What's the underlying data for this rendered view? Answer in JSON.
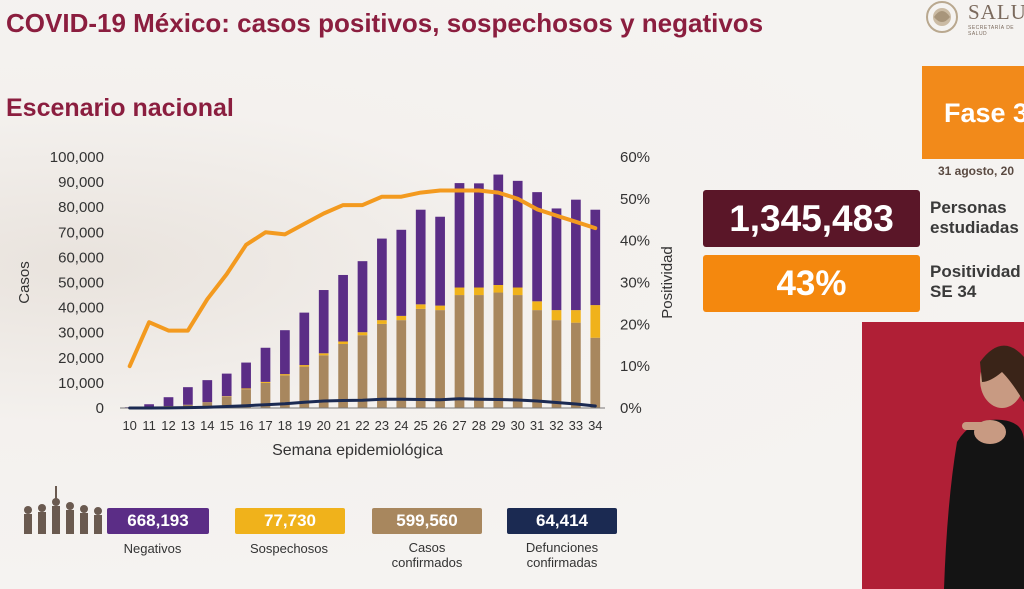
{
  "header": {
    "title": "COVID-19 México: casos positivos, sospechosos y negativos",
    "subtitle": "Escenario nacional",
    "logo_text": "SALU",
    "logo_sub": "SECRETARÍA DE SALUD"
  },
  "fase": {
    "label": "Fase 3",
    "date": "31 agosto, 20"
  },
  "stats": [
    {
      "value": "1,345,483",
      "label_line1": "Personas",
      "label_line2": "estudiadas"
    },
    {
      "value": "43%",
      "label_line1": "Positividad",
      "label_line2": "SE 34"
    }
  ],
  "totals": [
    {
      "value": "668,193",
      "label": "Negativos",
      "color": "#5b2d86"
    },
    {
      "value": "77,730",
      "label": "Sospechosos",
      "color": "#f0b21b"
    },
    {
      "value": "599,560",
      "label": "Casos confirmados",
      "color": "#a8875e"
    },
    {
      "value": "64,414",
      "label": "Defunciones confirmadas",
      "color": "#1b2a52"
    }
  ],
  "chart_data": {
    "type": "bar",
    "xlabel": "Semana epidemiológica",
    "ylabel": "Casos",
    "y2label": "Positividad",
    "ylim": [
      0,
      100000
    ],
    "y2lim": [
      0,
      60
    ],
    "yticks": [
      "0",
      "10,000",
      "20,000",
      "30,000",
      "40,000",
      "50,000",
      "60,000",
      "70,000",
      "80,000",
      "90,000",
      "100,000"
    ],
    "y2ticks": [
      "0%",
      "10%",
      "20%",
      "30%",
      "40%",
      "50%",
      "60%"
    ],
    "categories": [
      "10",
      "11",
      "12",
      "13",
      "14",
      "15",
      "16",
      "17",
      "18",
      "19",
      "20",
      "21",
      "22",
      "23",
      "24",
      "25",
      "26",
      "27",
      "28",
      "29",
      "30",
      "31",
      "32",
      "33",
      "34"
    ],
    "stacked": true,
    "series": [
      {
        "name": "Casos confirmados",
        "color": "#a8875e",
        "values": [
          150,
          300,
          800,
          1300,
          2200,
          4500,
          7500,
          10000,
          13000,
          16500,
          21000,
          25500,
          29000,
          33500,
          35000,
          39500,
          39000,
          45000,
          45000,
          46000,
          45000,
          39000,
          35000,
          34000,
          28000
        ]
      },
      {
        "name": "Sospechosos",
        "color": "#f0b21b",
        "values": [
          0,
          0,
          0,
          0,
          100,
          200,
          300,
          400,
          500,
          600,
          800,
          1000,
          1200,
          1500,
          1700,
          1800,
          1800,
          3000,
          3000,
          3000,
          3000,
          3500,
          4000,
          5000,
          13000
        ]
      },
      {
        "name": "Negativos",
        "color": "#5b2d86",
        "values": [
          150,
          1200,
          3500,
          7000,
          8800,
          9000,
          10300,
          13600,
          17500,
          20900,
          25200,
          26500,
          28300,
          32500,
          34300,
          37700,
          35400,
          41600,
          41500,
          44000,
          42500,
          43500,
          40500,
          44000,
          38000
        ]
      }
    ],
    "line_series": [
      {
        "name": "Positividad",
        "axis": "right",
        "color": "#f39a1f",
        "values": [
          10,
          20.5,
          18.5,
          18.5,
          26,
          32,
          39,
          42,
          41.5,
          44,
          46.5,
          48.5,
          48.5,
          50.5,
          50.5,
          51.5,
          52,
          52,
          52,
          51.5,
          50,
          47.5,
          46,
          44.5,
          43
        ]
      },
      {
        "name": "Defunciones",
        "axis": "left",
        "color": "#1b2a52",
        "values": [
          0,
          0,
          50,
          150,
          300,
          600,
          900,
          1300,
          1700,
          2300,
          2800,
          3000,
          3100,
          3500,
          3500,
          3400,
          3300,
          3700,
          3500,
          3400,
          3200,
          2800,
          2200,
          1600,
          800
        ]
      }
    ]
  }
}
